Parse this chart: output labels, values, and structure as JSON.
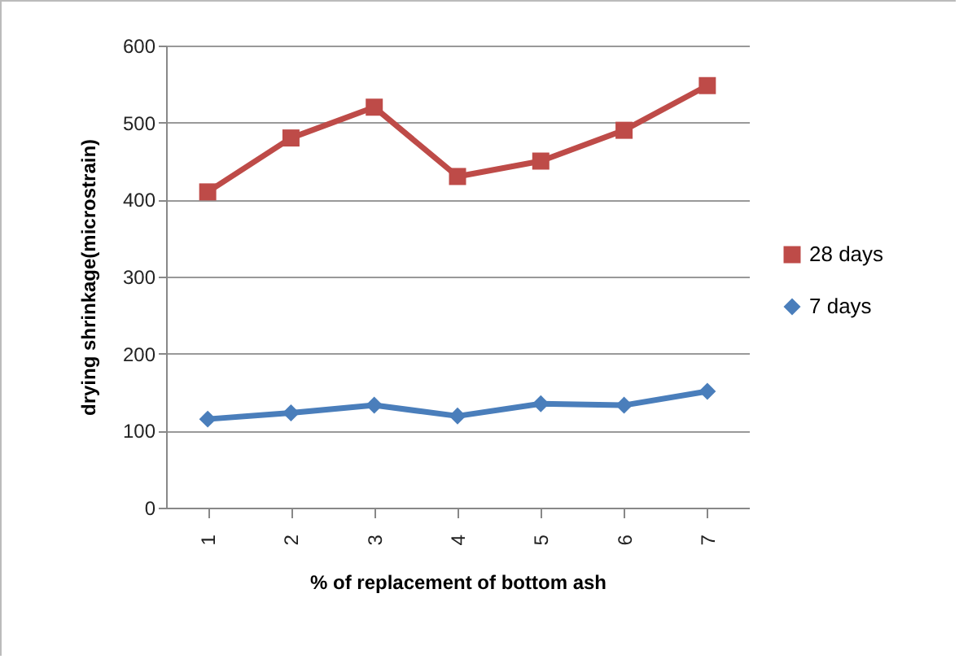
{
  "chart_data": {
    "type": "line",
    "xlabel": "% of replacement of  bottom ash",
    "ylabel": "drying shrinkage(microstrain)",
    "categories": [
      "1",
      "2",
      "3",
      "4",
      "5",
      "6",
      "7"
    ],
    "series": [
      {
        "name": "28 days",
        "color": "#be4b48",
        "marker": "square",
        "values": [
          410,
          480,
          520,
          430,
          450,
          490,
          548
        ]
      },
      {
        "name": "7 days",
        "color": "#4a7ebb",
        "marker": "diamond",
        "values": [
          115,
          123,
          133,
          119,
          135,
          133,
          151
        ]
      }
    ],
    "ylim": [
      0,
      600
    ],
    "yticks": [
      0,
      100,
      200,
      300,
      400,
      500,
      600
    ],
    "grid": "y",
    "legend": "right"
  }
}
